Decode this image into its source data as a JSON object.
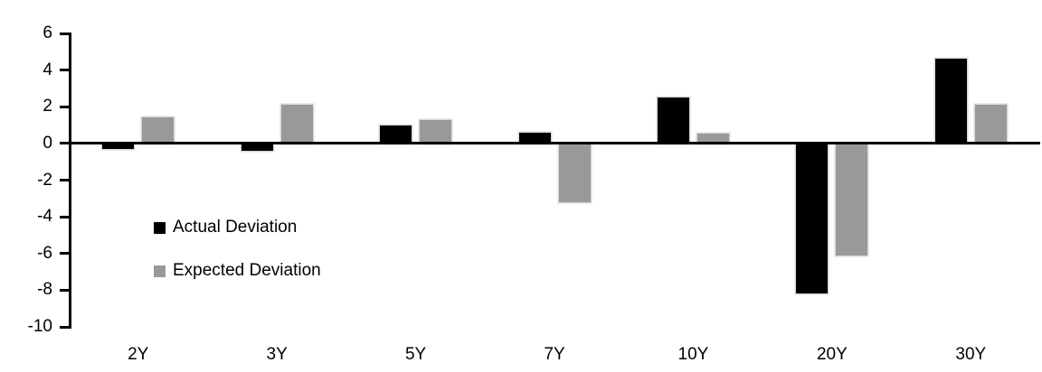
{
  "chart_data": {
    "type": "bar",
    "categories": [
      "2Y",
      "3Y",
      "5Y",
      "7Y",
      "10Y",
      "20Y",
      "30Y"
    ],
    "series": [
      {
        "name": "Actual Deviation",
        "color": "#000000",
        "values": [
          -0.3,
          -0.4,
          1.0,
          0.6,
          2.5,
          -8.2,
          4.6
        ]
      },
      {
        "name": "Expected Deviation",
        "color": "#999999",
        "values": [
          1.4,
          2.1,
          1.3,
          -3.2,
          0.55,
          -6.1,
          2.1
        ]
      }
    ],
    "title": "",
    "xlabel": "",
    "ylabel": "",
    "ylim": [
      -10,
      6
    ],
    "yticks": [
      6,
      4,
      2,
      0,
      -2,
      -4,
      -6,
      -8,
      -10
    ],
    "grid": "off",
    "legend_position": "inside-plot-left",
    "axis_color": "#000000",
    "bar_outline_color": "#d9d9d9",
    "background": "#ffffff"
  }
}
